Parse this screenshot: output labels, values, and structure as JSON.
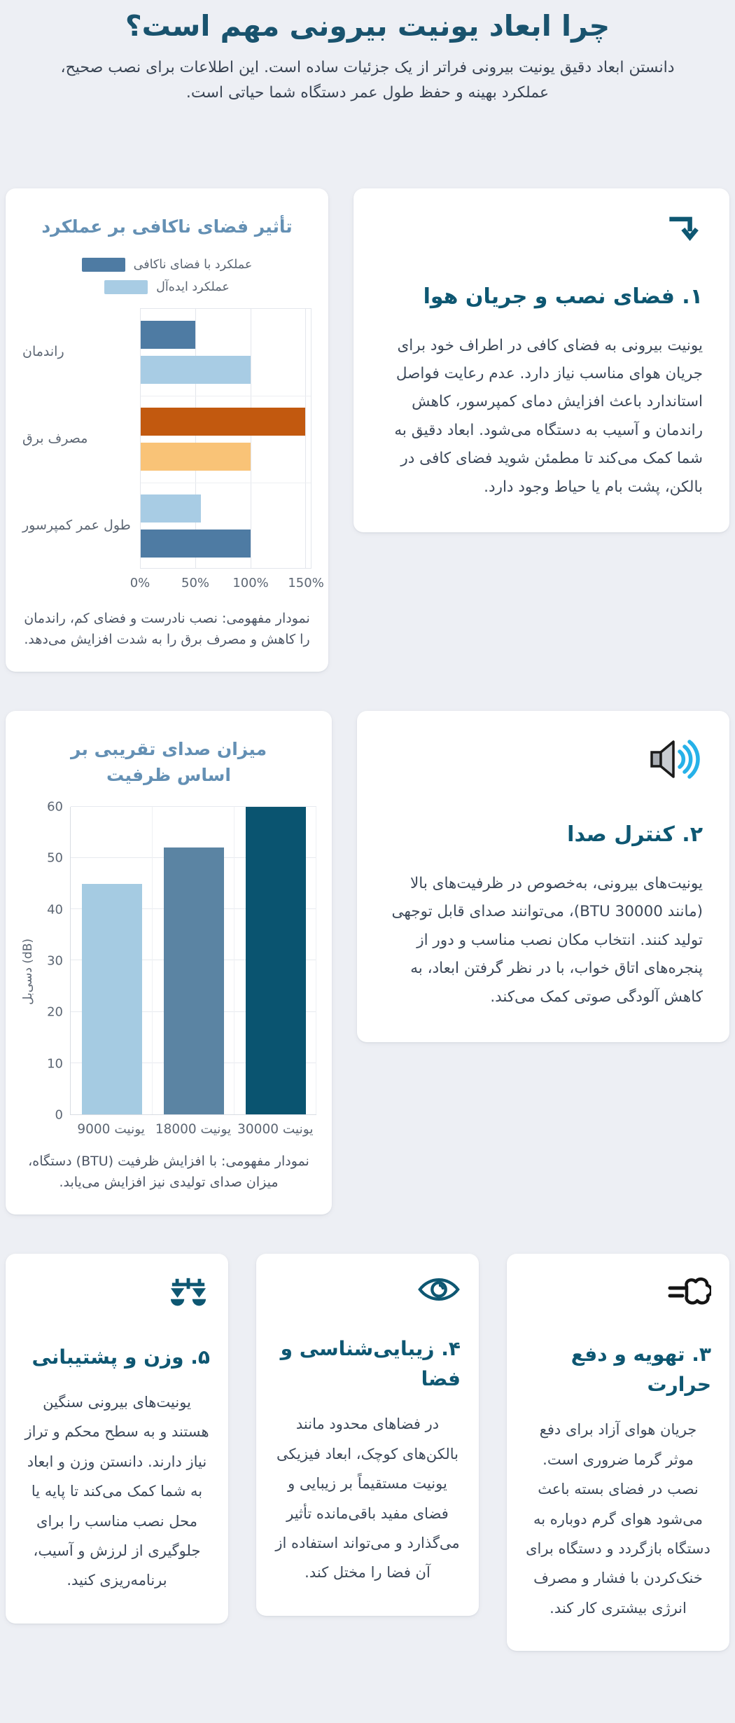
{
  "page": {
    "title": "چرا ابعاد یونیت بیرونی مهم است؟",
    "subtitle": "دانستن ابعاد دقیق یونیت بیرونی فراتر از یک جزئیات ساده است. این اطلاعات برای نصب صحیح، عملکرد بهینه و حفظ طول عمر دستگاه شما حیاتی است."
  },
  "colors": {
    "page_background": "#edeff4",
    "card_background": "#ffffff",
    "heading_teal": "#0e5772",
    "title_teal": "#19536e",
    "chart_title_blue": "#6490b4",
    "body_text": "#3d4959",
    "axis_text": "#5c6673",
    "bar_dark_blue": "#4e7ba3",
    "bar_light_blue": "#a8cce4",
    "bar_dark_orange": "#c2590f",
    "bar_light_orange": "#f9c377",
    "noise_bar_small": "#a5cbe2",
    "noise_bar_medium": "#5b84a3",
    "noise_bar_large": "#0a5470",
    "speaker_wave_cyan": "#26b1e8"
  },
  "cards": {
    "airflow": {
      "icon": "corner-down-arrow",
      "title": "۱. فضای نصب و جریان هوا",
      "body": "یونیت بیرونی به فضای کافی در اطراف خود برای جریان هوای مناسب نیاز دارد. عدم رعایت فواصل استاندارد باعث افزایش دمای کمپرسور، کاهش راندمان و آسیب به دستگاه می‌شود. ابعاد دقیق به شما کمک می‌کند تا مطمئن شوید فضای کافی در بالکن، پشت بام یا حیاط وجود دارد."
    },
    "noise": {
      "icon": "speaker",
      "title": "۲. کنترل صدا",
      "body": "یونیت‌های بیرونی، به‌خصوص در ظرفیت‌های بالا (مانند BTU 30000)، می‌توانند صدای قابل توجهی تولید کنند. انتخاب مکان نصب مناسب و دور از پنجره‌های اتاق خواب، با در نظر گرفتن ابعاد، به کاهش آلودگی صوتی کمک می‌کند."
    },
    "heat": {
      "icon": "wind-puff",
      "title": "۳. تهویه و دفع حرارت",
      "body": "جریان هوای آزاد برای دفع موثر گرما ضروری است. نصب در فضای بسته باعث می‌شود هوای گرم دوباره به دستگاه بازگردد و دستگاه برای خنک‌کردن با فشار و مصرف انرژی بیشتری کار کند."
    },
    "aesthetics": {
      "icon": "eye",
      "title": "۴. زیبایی‌شناسی و فضا",
      "body": "در فضاهای محدود مانند بالکن‌های کوچک، ابعاد فیزیکی یونیت مستقیماً بر زیبایی و فضای مفید باقی‌مانده تأثیر می‌گذارد و می‌تواند استفاده از آن فضا را مختل کند."
    },
    "weight": {
      "icon": "scales",
      "title": "۵. وزن و پشتیبانی",
      "body": "یونیت‌های بیرونی سنگین هستند و به سطح محکم و تراز نیاز دارند. دانستن وزن و ابعاد به شما کمک می‌کند تا پایه یا محل نصب مناسب را برای جلوگیری از لرزش و آسیب، برنامه‌ریزی کنید."
    }
  },
  "chart_data": [
    {
      "type": "bar",
      "orientation": "horizontal",
      "title": "تأثیر فضای ناکافی بر عملکرد",
      "legend": [
        {
          "label": "عملکرد با فضای ناکافی",
          "color": "#4e7ba3"
        },
        {
          "label": "عملکرد ایده‌آل",
          "color": "#a8cce4"
        }
      ],
      "xlim": [
        0,
        155
      ],
      "xticks": [
        {
          "value": 0,
          "label": "0%"
        },
        {
          "value": 50,
          "label": "50%"
        },
        {
          "value": 100,
          "label": "100%"
        },
        {
          "value": 150,
          "label": "150%"
        }
      ],
      "categories": [
        "راندمان",
        "مصرف برق",
        "طول عمر کمپرسور"
      ],
      "rows": [
        {
          "label": "راندمان",
          "bars": [
            {
              "series": "عملکرد با فضای ناکافی",
              "value": 50,
              "color": "#4e7ba3"
            },
            {
              "series": "عملکرد ایده‌آل",
              "value": 100,
              "color": "#a8cce4"
            }
          ]
        },
        {
          "label": "مصرف برق",
          "bars": [
            {
              "series": "عملکرد با فضای ناکافی",
              "value": 150,
              "color": "#c2590f"
            },
            {
              "series": "عملکرد ایده‌آل",
              "value": 100,
              "color": "#f9c377"
            }
          ]
        },
        {
          "label": "طول عمر کمپرسور",
          "bars": [
            {
              "series": "عملکرد با فضای ناکافی",
              "value": 55,
              "color": "#a8cce4"
            },
            {
              "series": "عملکرد ایده‌آل",
              "value": 100,
              "color": "#4e7ba3"
            }
          ]
        }
      ],
      "caption": "نمودار مفهومی: نصب نادرست و فضای کم، راندمان را کاهش و مصرف برق را به شدت افزایش می‌دهد.",
      "grid": true
    },
    {
      "type": "bar",
      "orientation": "vertical",
      "title": "میزان صدای تقریبی بر اساس ظرفیت",
      "ylabel": "دسی‌بل (dB)",
      "ylim": [
        0,
        60
      ],
      "yticks": [
        0,
        10,
        20,
        30,
        40,
        50,
        60
      ],
      "categories": [
        "یونیت 9000",
        "یونیت 18000",
        "یونیت 30000"
      ],
      "values": [
        45,
        52,
        60
      ],
      "colors": [
        "#a5cbe2",
        "#5b84a3",
        "#0a5470"
      ],
      "caption": "نمودار مفهومی: با افزایش ظرفیت (BTU) دستگاه، میزان صدای تولیدی نیز افزایش می‌یابد.",
      "grid": true
    }
  ]
}
